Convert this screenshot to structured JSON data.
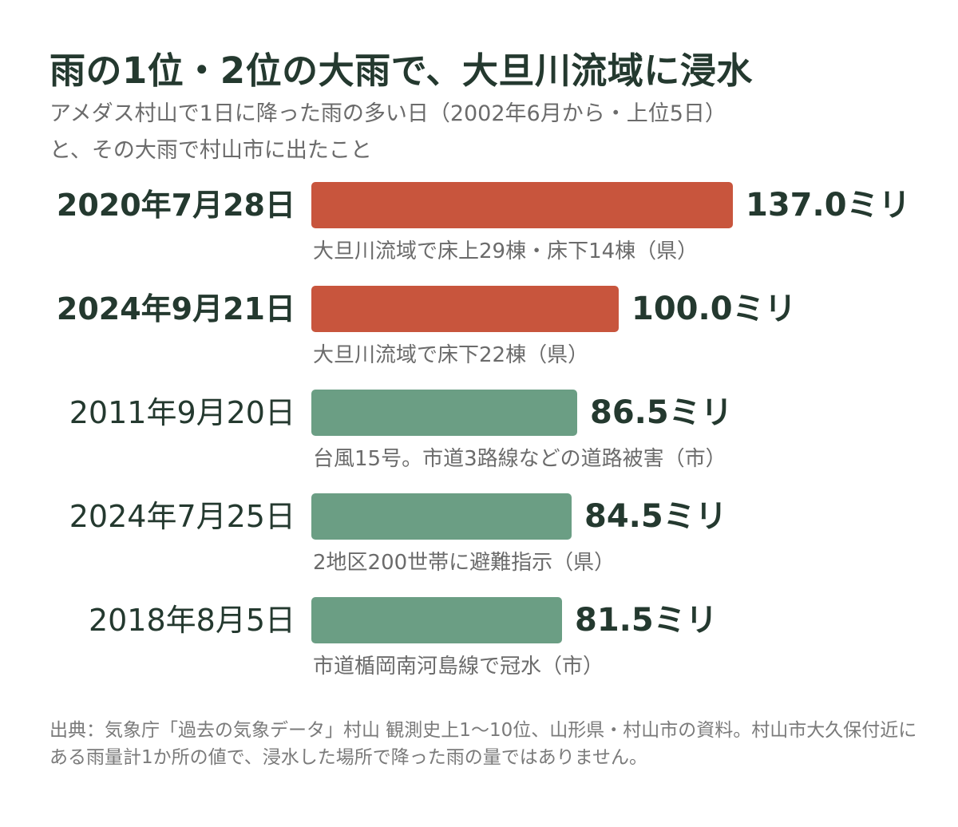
{
  "title": "雨の1位・2位の大雨で、大旦川流域に浸水",
  "subtitle_line1": "アメダス村山で1日に降った雨の多い日（2002年6月から・上位5日）",
  "subtitle_line2": "と、その大雨で村山市に出たこと",
  "chart_data": {
    "type": "bar",
    "orientation": "horizontal",
    "unit": "ミリ",
    "categories": [
      "2020年7月28日",
      "2024年9月21日",
      "2011年9月20日",
      "2024年7月25日",
      "2018年8月5日"
    ],
    "values": [
      137.0,
      100.0,
      86.5,
      84.5,
      81.5
    ],
    "value_labels": [
      "137.0ミリ",
      "100.0ミリ",
      "86.5ミリ",
      "84.5ミリ",
      "81.5ミリ"
    ],
    "notes": [
      "大旦川流域で床上29棟・床下14棟（県）",
      "大旦川流域で床下22棟（県）",
      "台風15号。市道3路線などの道路被害（市）",
      "2地区200世帯に避難指示（県）",
      "市道楯岡南河島線で冠水（市）"
    ],
    "highlight": [
      true,
      true,
      false,
      false,
      false
    ],
    "colors": {
      "highlight": "#c8553d",
      "normal": "#6b9e84"
    },
    "xlim": [
      0,
      137.0
    ],
    "grid": false,
    "legend": "none"
  },
  "source_text": "出典：気象庁「過去の気象データ」村山 観測史上1〜10位、山形県・村山市の資料。村山市大久保付近にある雨量計1か所の値で、浸水した場所で降った雨の量ではありません。"
}
